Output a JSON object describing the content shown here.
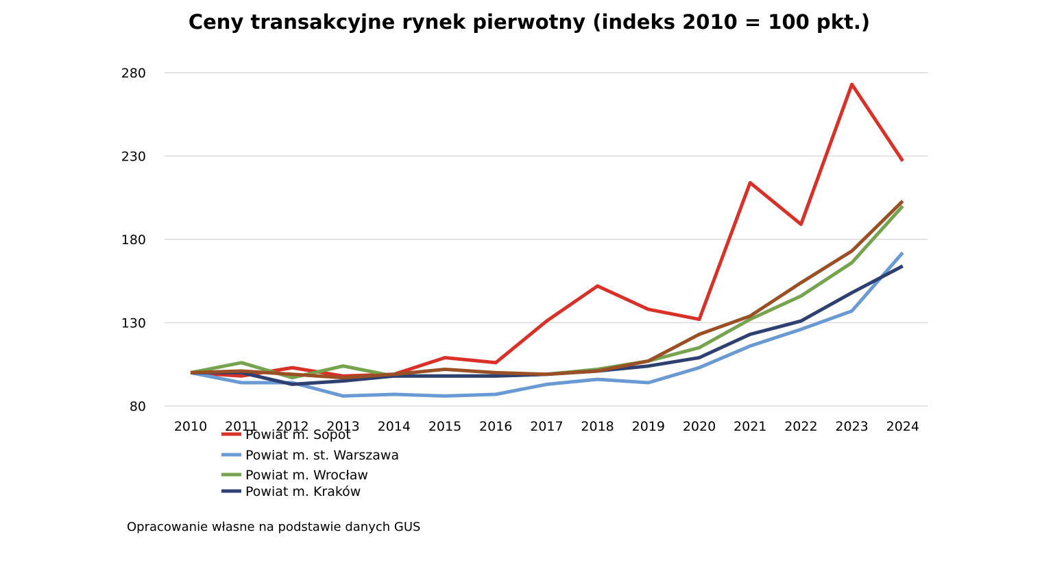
{
  "chart_data": {
    "type": "line",
    "title": "Ceny transakcyjne rynek pierwotny (indeks 2010 = 100 pkt.)",
    "xlabel": "",
    "ylabel": "",
    "ylim": [
      80,
      280
    ],
    "yticks": [
      80,
      130,
      180,
      230,
      280
    ],
    "categories": [
      "2010",
      "2011",
      "2012",
      "2013",
      "2014",
      "2015",
      "2016",
      "2017",
      "2018",
      "2019",
      "2020",
      "2021",
      "2022",
      "2023",
      "2024"
    ],
    "grid": true,
    "legend_position": "bottom-left",
    "series": [
      {
        "name": "Powiat m. Sopot",
        "color": "#d93128",
        "values": [
          100,
          98,
          103,
          98,
          99,
          109,
          106,
          131,
          152,
          138,
          132,
          214,
          189,
          273,
          227
        ]
      },
      {
        "name": "Powiat m. st. Warszawa",
        "color": "#6a9ad4",
        "values": [
          100,
          94,
          94,
          86,
          87,
          86,
          87,
          93,
          96,
          94,
          103,
          116,
          126,
          137,
          172
        ]
      },
      {
        "name": "Powiat m. Wrocław",
        "color": "#76a34e",
        "values": [
          100,
          106,
          97,
          104,
          98,
          98,
          98,
          99,
          102,
          107,
          115,
          132,
          146,
          166,
          200
        ]
      },
      {
        "name": "Powiat m. Kraków",
        "color": "#2e3f72",
        "values": [
          100,
          100,
          93,
          95,
          98,
          98,
          98,
          99,
          101,
          104,
          109,
          123,
          131,
          148,
          164
        ]
      },
      {
        "name": "",
        "color": "#9a4f24",
        "values": [
          100,
          101,
          99,
          97,
          99,
          102,
          100,
          99,
          101,
          107,
          123,
          134,
          154,
          173,
          203
        ]
      }
    ]
  },
  "footnote": "Opracowanie własne na podstawie danych GUS"
}
